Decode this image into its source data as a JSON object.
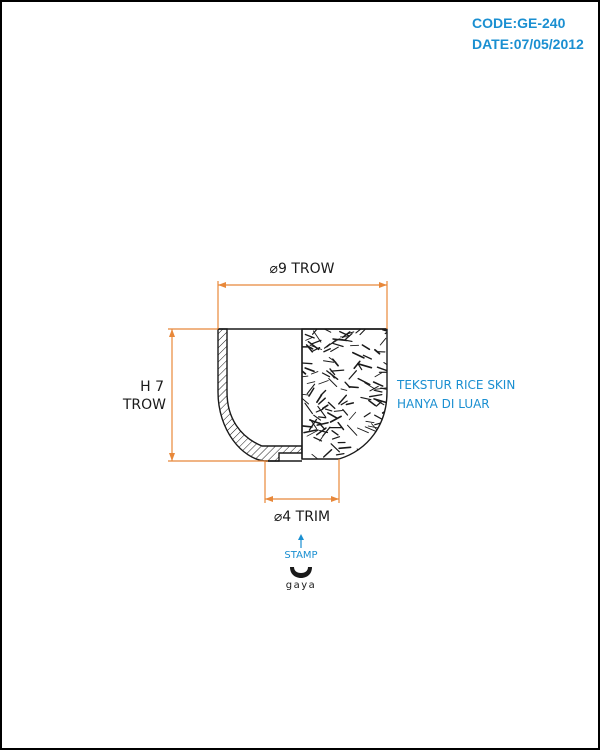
{
  "header": {
    "code": "CODE:GE-240",
    "date": "DATE:07/05/2012"
  },
  "dimensions": {
    "top_diameter": "⌀9 TROW",
    "height_line1": "H 7",
    "height_line2": "TROW",
    "bottom_diameter": "⌀4 TRIM"
  },
  "note": {
    "line1": "TEKSTUR RICE SKIN",
    "line2": "HANYA DI LUAR"
  },
  "stamp": {
    "label": "STAMP",
    "logo_text": "gaya"
  },
  "colors": {
    "accent_blue": "#1a8fd1",
    "dimension_orange": "#e8883a",
    "line": "#1a1a1a"
  }
}
